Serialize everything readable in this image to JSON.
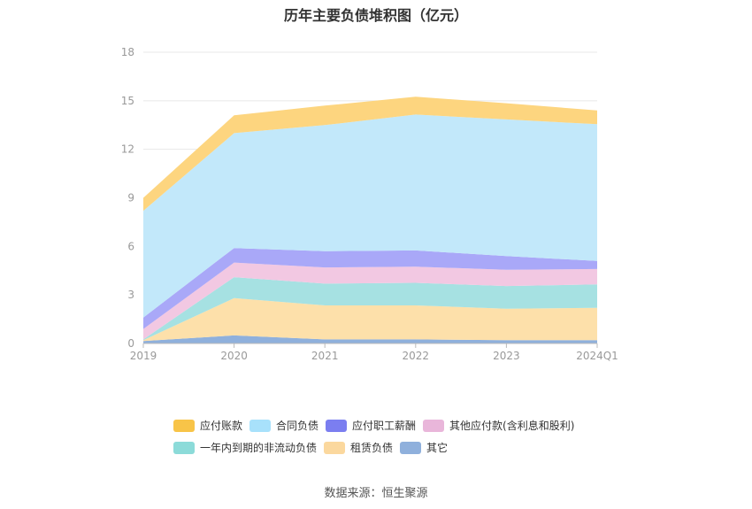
{
  "chart_data": {
    "type": "area",
    "title": "历年主要负债堆积图（亿元）",
    "categories": [
      "2019",
      "2020",
      "2021",
      "2022",
      "2023",
      "2024Q1"
    ],
    "ylim": [
      0,
      18
    ],
    "yticks": [
      0,
      3,
      6,
      9,
      12,
      15,
      18
    ],
    "stacked": true,
    "grid": true,
    "legend_position": "bottom",
    "series": [
      {
        "name": "其它",
        "color": "#8fb0dc",
        "values": [
          0.15,
          0.5,
          0.25,
          0.25,
          0.2,
          0.2
        ]
      },
      {
        "name": "租赁负债",
        "color": "#fde0aa",
        "values": [
          0.05,
          2.3,
          2.1,
          2.1,
          1.95,
          2.0
        ]
      },
      {
        "name": "一年内到期的非流动负债",
        "color": "#a6e1e2",
        "values": [
          0.05,
          1.3,
          1.35,
          1.4,
          1.4,
          1.45
        ]
      },
      {
        "name": "其他应付款(含利息和股利)",
        "color": "#f2c8e2",
        "values": [
          0.65,
          0.9,
          1.0,
          1.0,
          1.0,
          0.95
        ]
      },
      {
        "name": "应付职工薪酬",
        "color": "#a9a8f8",
        "values": [
          0.7,
          0.9,
          1.0,
          1.0,
          0.85,
          0.5
        ]
      },
      {
        "name": "合同负债",
        "color": "#c2e8fa",
        "values": [
          6.6,
          7.1,
          7.8,
          8.4,
          8.45,
          8.45
        ]
      },
      {
        "name": "应付账款",
        "color": "#fdd57f",
        "values": [
          0.8,
          1.1,
          1.2,
          1.1,
          1.0,
          0.85
        ]
      }
    ],
    "legend_colors": [
      "#f8c448",
      "#a8e1fb",
      "#7b7ef0",
      "#e9b6da",
      "#8cdbd9",
      "#fbd89e",
      "#8fb0dc"
    ]
  },
  "source": "数据来源：恒生聚源"
}
